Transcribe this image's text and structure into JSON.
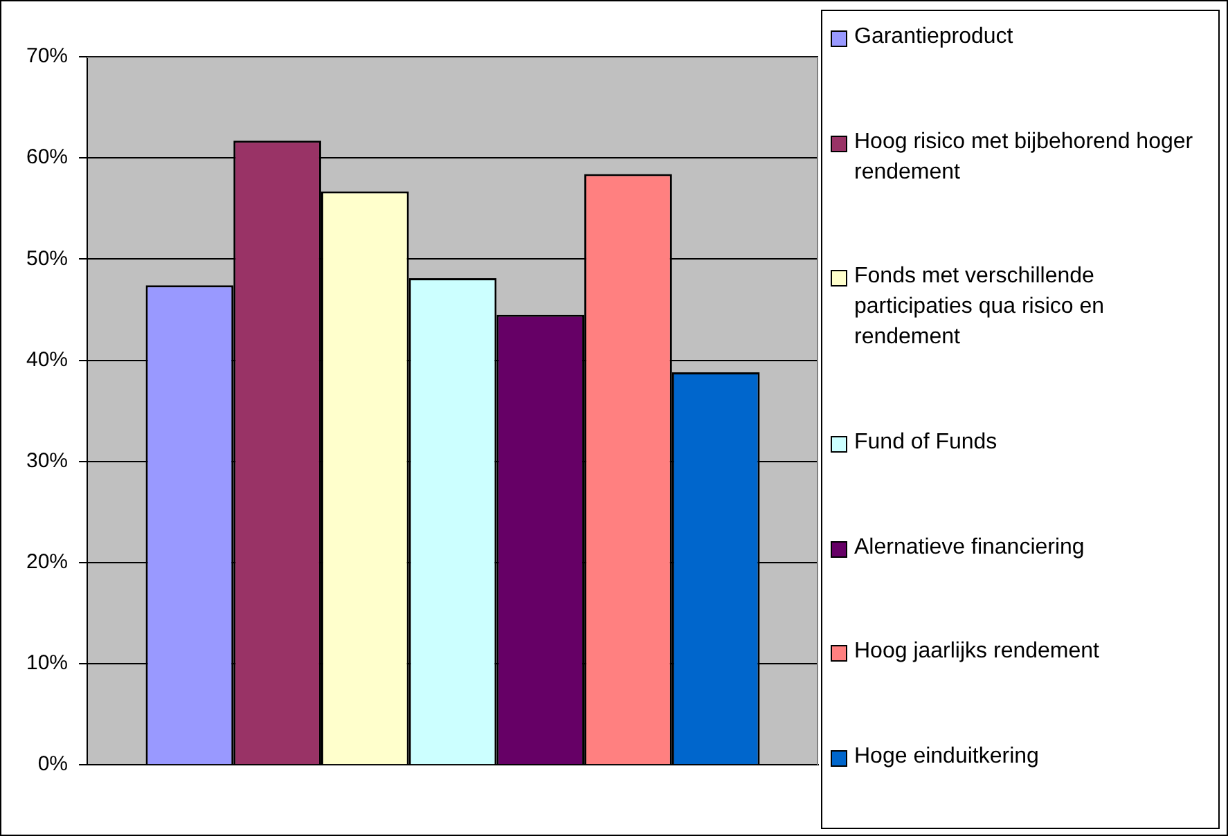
{
  "chart_data": {
    "type": "bar",
    "categories": [
      null
    ],
    "series": [
      {
        "name": "Garantieproduct",
        "color": "#9999ff",
        "values": [
          47.4
        ]
      },
      {
        "name": "Hoog risico met bijbehorend hoger rendement",
        "color": "#993366",
        "values": [
          61.7
        ]
      },
      {
        "name": "Fonds met verschillende participaties qua risico en rendement",
        "color": "#ffffcc",
        "values": [
          56.7
        ]
      },
      {
        "name": "Fund of Funds",
        "color": "#ccffff",
        "values": [
          48.1
        ]
      },
      {
        "name": "Alernatieve financiering",
        "color": "#660066",
        "values": [
          44.5
        ]
      },
      {
        "name": "Hoog jaarlijks rendement",
        "color": "#ff8080",
        "values": [
          58.4
        ]
      },
      {
        "name": "Hoge einduitkering",
        "color": "#0066cc",
        "values": [
          38.8
        ]
      }
    ],
    "ylim": [
      0,
      70
    ],
    "yticks": [
      {
        "value": 0,
        "label": "0%"
      },
      {
        "value": 10,
        "label": "10%"
      },
      {
        "value": 20,
        "label": "20%"
      },
      {
        "value": 30,
        "label": "30%"
      },
      {
        "value": 40,
        "label": "40%"
      },
      {
        "value": 50,
        "label": "50%"
      },
      {
        "value": 60,
        "label": "60%"
      },
      {
        "value": 70,
        "label": "70%"
      }
    ],
    "grid": "y",
    "legend": "right"
  }
}
